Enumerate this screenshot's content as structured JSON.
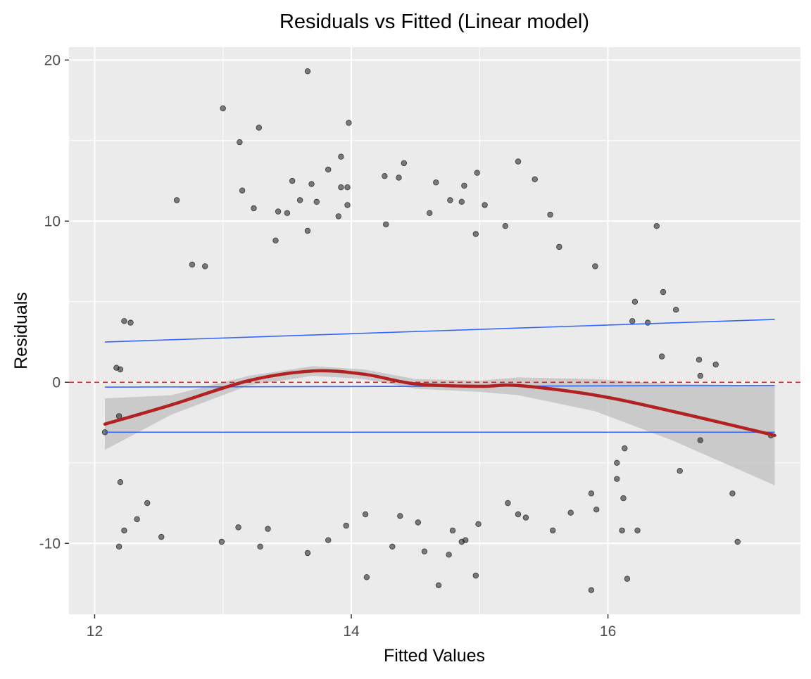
{
  "chart_data": {
    "type": "scatter",
    "title": "Residuals vs Fitted (Linear model)",
    "xlabel": "Fitted Values",
    "ylabel": "Residuals",
    "xlim": [
      11.8,
      17.5
    ],
    "ylim": [
      -14.4,
      20.8
    ],
    "x_ticks": [
      12,
      14,
      16
    ],
    "x_tick_labels": [
      "12",
      "14",
      "16"
    ],
    "y_ticks": [
      -10,
      0,
      10,
      20
    ],
    "y_tick_labels": [
      "-10",
      "0",
      "10",
      "20"
    ],
    "grid": true,
    "legend": "none",
    "colors": {
      "panel": "#ebebeb",
      "grid": "#ffffff",
      "points": "#1a1a1a",
      "smooth": "#b22222",
      "reference": "#e41a1c",
      "quantile_lines": "#3366ff",
      "band": "#bfbfbf"
    },
    "reference_line": {
      "y": 0,
      "style": "dashed"
    },
    "smooth": {
      "x": [
        12.08,
        12.6,
        13.2,
        13.7,
        14.1,
        14.5,
        15.0,
        15.3,
        15.9,
        16.5,
        17.3
      ],
      "y": [
        -2.6,
        -1.4,
        0.1,
        0.7,
        0.5,
        -0.1,
        -0.25,
        -0.2,
        -0.8,
        -1.8,
        -3.3
      ],
      "band_lower": [
        -4.2,
        -2.0,
        -0.2,
        0.4,
        0.2,
        -0.4,
        -0.6,
        -0.8,
        -1.8,
        -3.6,
        -6.4
      ],
      "band_upper": [
        -1.0,
        -0.8,
        0.4,
        1.0,
        0.8,
        0.2,
        0.1,
        0.3,
        0.2,
        -0.1,
        -0.2
      ]
    },
    "quantile_lines": [
      {
        "x": [
          12.08,
          17.3
        ],
        "y": [
          2.5,
          3.9
        ]
      },
      {
        "x": [
          12.08,
          17.3
        ],
        "y": [
          -0.3,
          -0.2
        ]
      },
      {
        "x": [
          12.08,
          17.3
        ],
        "y": [
          -3.1,
          -3.1
        ]
      }
    ],
    "points": [
      [
        13.66,
        19.3
      ],
      [
        13.0,
        17.0
      ],
      [
        13.98,
        16.1
      ],
      [
        13.28,
        15.8
      ],
      [
        13.13,
        14.9
      ],
      [
        13.92,
        14.0
      ],
      [
        15.3,
        13.7
      ],
      [
        14.41,
        13.6
      ],
      [
        13.82,
        13.2
      ],
      [
        14.98,
        13.0
      ],
      [
        14.26,
        12.8
      ],
      [
        14.37,
        12.7
      ],
      [
        15.43,
        12.6
      ],
      [
        13.54,
        12.5
      ],
      [
        14.66,
        12.4
      ],
      [
        14.88,
        12.2
      ],
      [
        13.92,
        12.1
      ],
      [
        13.97,
        12.1
      ],
      [
        13.69,
        12.3
      ],
      [
        12.64,
        11.3
      ],
      [
        14.77,
        11.3
      ],
      [
        13.6,
        11.3
      ],
      [
        13.73,
        11.2
      ],
      [
        15.04,
        11.0
      ],
      [
        13.97,
        11.0
      ],
      [
        14.86,
        11.2
      ],
      [
        13.15,
        11.9
      ],
      [
        13.24,
        10.8
      ],
      [
        13.43,
        10.6
      ],
      [
        14.61,
        10.5
      ],
      [
        15.55,
        10.4
      ],
      [
        13.5,
        10.5
      ],
      [
        13.9,
        10.3
      ],
      [
        16.38,
        9.7
      ],
      [
        15.2,
        9.7
      ],
      [
        14.27,
        9.8
      ],
      [
        14.97,
        9.2
      ],
      [
        13.66,
        9.4
      ],
      [
        13.41,
        8.8
      ],
      [
        15.62,
        8.4
      ],
      [
        15.9,
        7.2
      ],
      [
        12.76,
        7.3
      ],
      [
        12.86,
        7.2
      ],
      [
        16.21,
        5.0
      ],
      [
        16.43,
        5.6
      ],
      [
        16.53,
        4.5
      ],
      [
        16.19,
        3.8
      ],
      [
        16.31,
        3.7
      ],
      [
        12.23,
        3.8
      ],
      [
        12.28,
        3.7
      ],
      [
        16.84,
        1.1
      ],
      [
        16.71,
        1.4
      ],
      [
        16.72,
        0.4
      ],
      [
        16.42,
        1.6
      ],
      [
        12.17,
        0.9
      ],
      [
        12.2,
        0.8
      ],
      [
        12.19,
        -2.1
      ],
      [
        12.08,
        -3.1
      ],
      [
        12.2,
        -6.2
      ],
      [
        12.23,
        -9.2
      ],
      [
        12.19,
        -10.2
      ],
      [
        12.33,
        -8.5
      ],
      [
        12.52,
        -9.6
      ],
      [
        12.41,
        -7.5
      ],
      [
        16.72,
        -3.6
      ],
      [
        16.56,
        -5.5
      ],
      [
        16.13,
        -4.1
      ],
      [
        16.07,
        -5.0
      ],
      [
        16.07,
        -6.0
      ],
      [
        16.12,
        -7.2
      ],
      [
        16.23,
        -9.2
      ],
      [
        16.11,
        -9.2
      ],
      [
        16.15,
        -12.2
      ],
      [
        15.87,
        -12.9
      ],
      [
        17.27,
        -3.3
      ],
      [
        16.97,
        -6.9
      ],
      [
        17.01,
        -9.9
      ],
      [
        14.68,
        -12.6
      ],
      [
        14.12,
        -12.1
      ],
      [
        14.97,
        -12.0
      ],
      [
        14.57,
        -10.5
      ],
      [
        14.32,
        -10.2
      ],
      [
        13.29,
        -10.2
      ],
      [
        13.66,
        -10.6
      ],
      [
        12.99,
        -9.9
      ],
      [
        13.35,
        -9.1
      ],
      [
        13.12,
        -9.0
      ],
      [
        13.82,
        -9.8
      ],
      [
        13.96,
        -8.9
      ],
      [
        14.11,
        -8.2
      ],
      [
        14.86,
        -9.9
      ],
      [
        14.99,
        -8.8
      ],
      [
        15.3,
        -8.2
      ],
      [
        15.57,
        -9.2
      ],
      [
        15.91,
        -7.9
      ],
      [
        15.87,
        -6.9
      ],
      [
        15.71,
        -8.1
      ],
      [
        15.36,
        -8.4
      ],
      [
        15.22,
        -7.5
      ],
      [
        14.76,
        -10.7
      ],
      [
        14.89,
        -9.8
      ],
      [
        14.79,
        -9.2
      ],
      [
        14.52,
        -8.7
      ],
      [
        14.38,
        -8.3
      ]
    ]
  }
}
